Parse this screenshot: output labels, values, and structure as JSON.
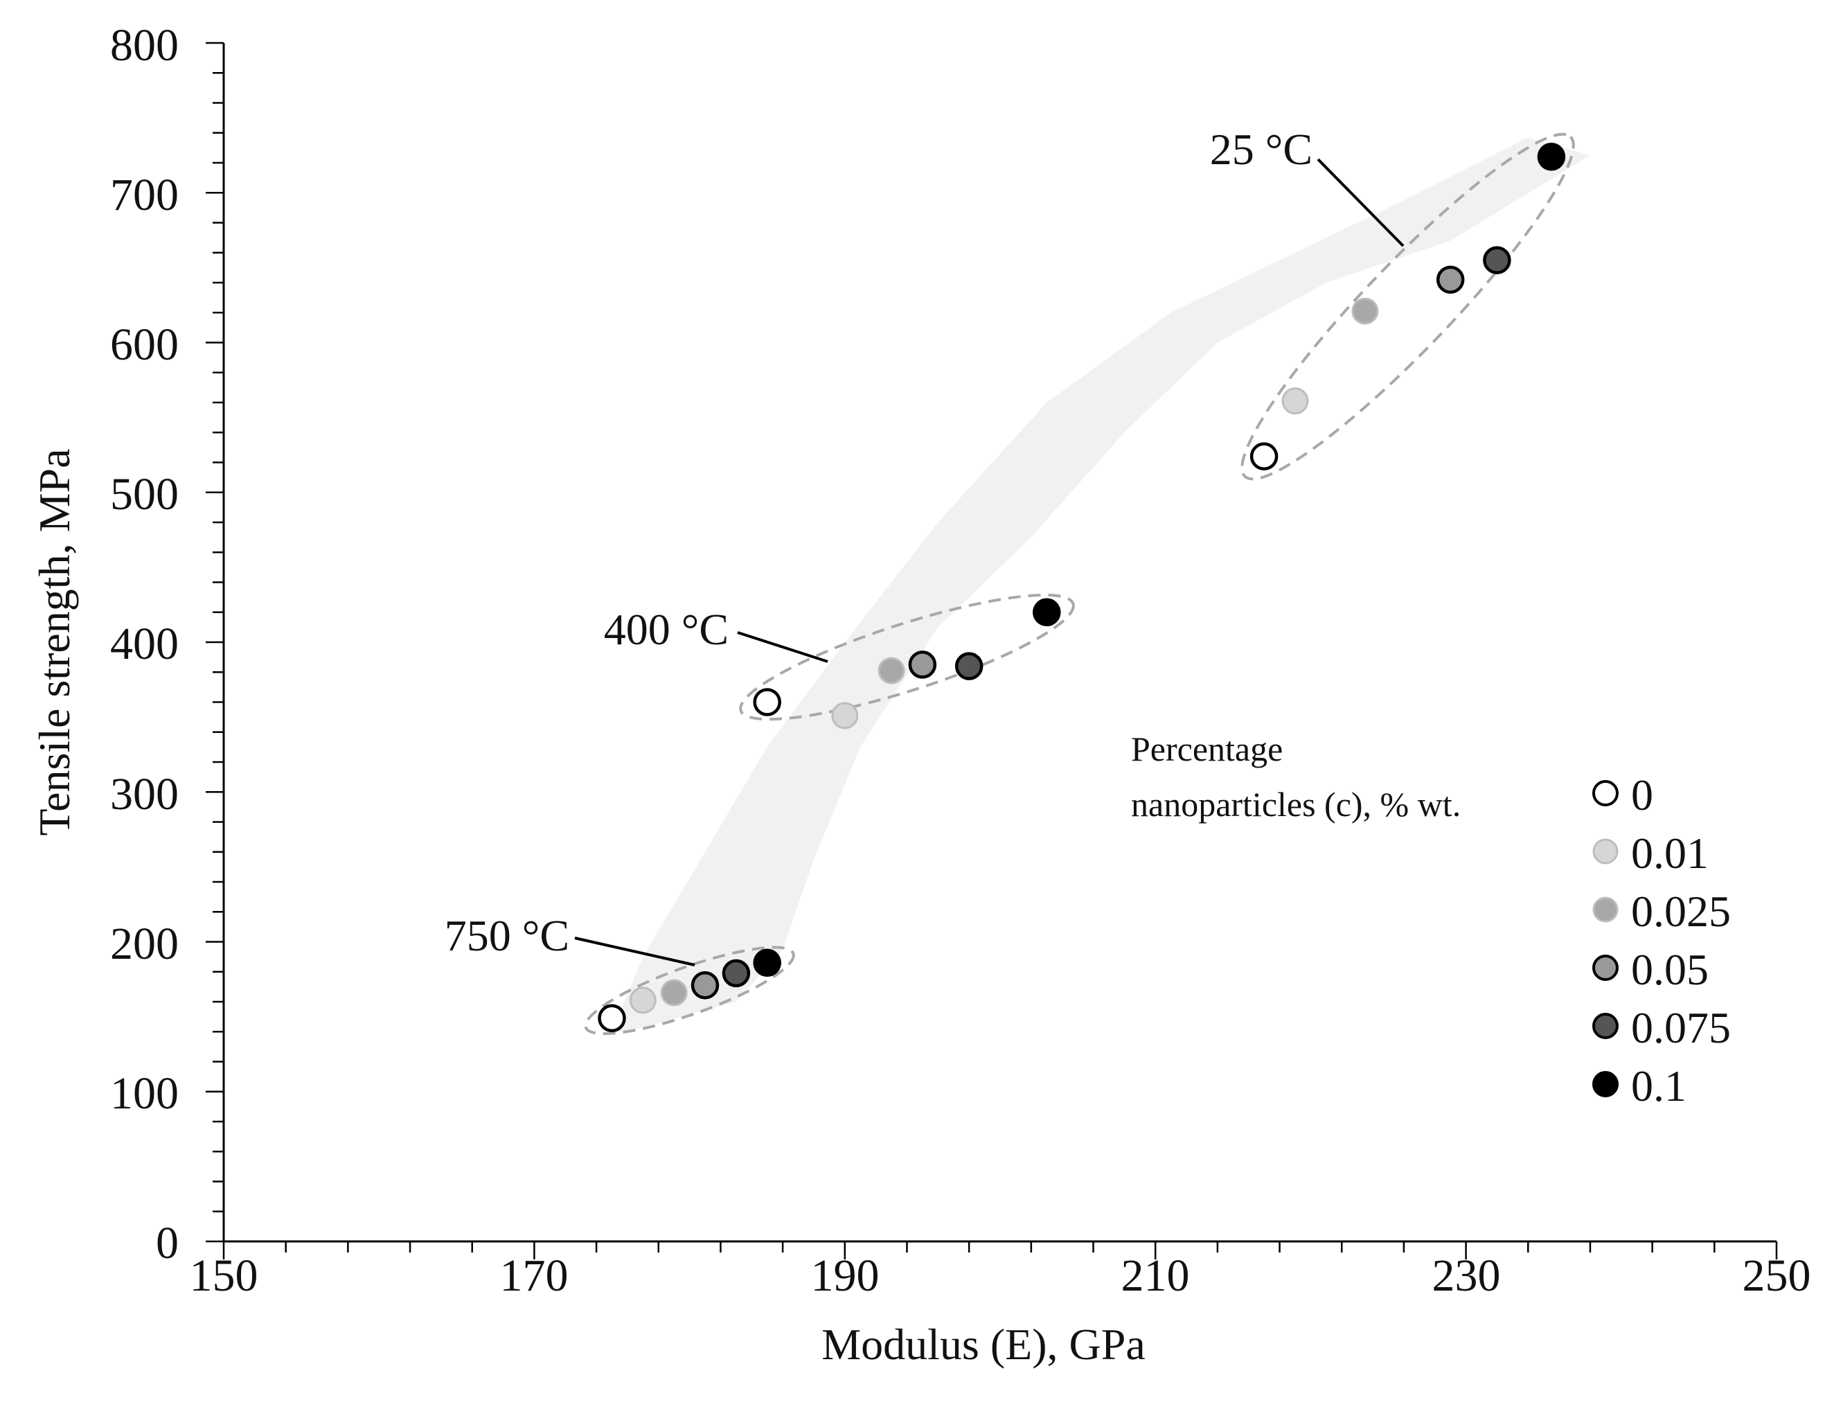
{
  "chart_data": {
    "type": "scatter",
    "title": "",
    "xlabel": "Modulus (E), GPa",
    "ylabel": "Tensile strength, MPa",
    "xlim": [
      150,
      250
    ],
    "ylim": [
      0,
      800
    ],
    "x_ticks": [
      "150",
      "170",
      "190",
      "210",
      "230",
      "250"
    ],
    "y_ticks": [
      "0",
      "100",
      "200",
      "300",
      "400",
      "500",
      "600",
      "700",
      "800"
    ],
    "grid": false,
    "legend": {
      "title_line1": "Percentage",
      "title_line2": "nanoparticles (c), % wt.",
      "placement": "right-middle",
      "entries": [
        {
          "label": "0",
          "fill": "#ffffff"
        },
        {
          "label": "0.01",
          "fill": "#d6d6d6"
        },
        {
          "label": "0.025",
          "fill": "#a8a8a8"
        },
        {
          "label": "0.05",
          "fill": "#999999"
        },
        {
          "label": "0.075",
          "fill": "#555555"
        },
        {
          "label": "0.1",
          "fill": "#000000"
        }
      ]
    },
    "series": [
      {
        "name": "25 °C",
        "annotation": {
          "text": "25 °C",
          "pointer_to": [
            226,
            665
          ]
        },
        "points": [
          {
            "x": 217,
            "y": 524,
            "c": "0"
          },
          {
            "x": 219,
            "y": 561,
            "c": "0.01"
          },
          {
            "x": 223.5,
            "y": 621,
            "c": "0.025"
          },
          {
            "x": 229,
            "y": 642,
            "c": "0.05"
          },
          {
            "x": 232,
            "y": 655,
            "c": "0.075"
          },
          {
            "x": 235.5,
            "y": 724,
            "c": "0.1"
          }
        ]
      },
      {
        "name": "400 °C",
        "annotation": {
          "text": "400 °C",
          "pointer_to": [
            189,
            388
          ]
        },
        "points": [
          {
            "x": 185,
            "y": 360,
            "c": "0"
          },
          {
            "x": 190,
            "y": 351,
            "c": "0.01"
          },
          {
            "x": 193,
            "y": 381,
            "c": "0.025"
          },
          {
            "x": 195,
            "y": 385,
            "c": "0.05"
          },
          {
            "x": 198,
            "y": 384,
            "c": "0.075"
          },
          {
            "x": 203,
            "y": 420,
            "c": "0.1"
          }
        ]
      },
      {
        "name": "750 °C",
        "annotation": {
          "text": "750 °C",
          "pointer_to": [
            180,
            170
          ]
        },
        "points": [
          {
            "x": 175,
            "y": 149,
            "c": "0"
          },
          {
            "x": 177,
            "y": 161,
            "c": "0.01"
          },
          {
            "x": 179,
            "y": 166,
            "c": "0.025"
          },
          {
            "x": 181,
            "y": 171,
            "c": "0.05"
          },
          {
            "x": 183,
            "y": 179,
            "c": "0.075"
          },
          {
            "x": 185,
            "y": 186,
            "c": "0.1"
          }
        ]
      }
    ],
    "shaded_band": [
      [
        175,
        140
      ],
      [
        177,
        190
      ],
      [
        181,
        260
      ],
      [
        185,
        330
      ],
      [
        190,
        400
      ],
      [
        196,
        480
      ],
      [
        203,
        560
      ],
      [
        211,
        620
      ],
      [
        218,
        655
      ],
      [
        226,
        695
      ],
      [
        234,
        737
      ],
      [
        238,
        725
      ],
      [
        229,
        668
      ],
      [
        221,
        640
      ],
      [
        214,
        600
      ],
      [
        208,
        540
      ],
      [
        202,
        470
      ],
      [
        196,
        410
      ],
      [
        191,
        330
      ],
      [
        188,
        255
      ],
      [
        186,
        195
      ],
      [
        183,
        160
      ],
      [
        176,
        140
      ]
    ]
  }
}
